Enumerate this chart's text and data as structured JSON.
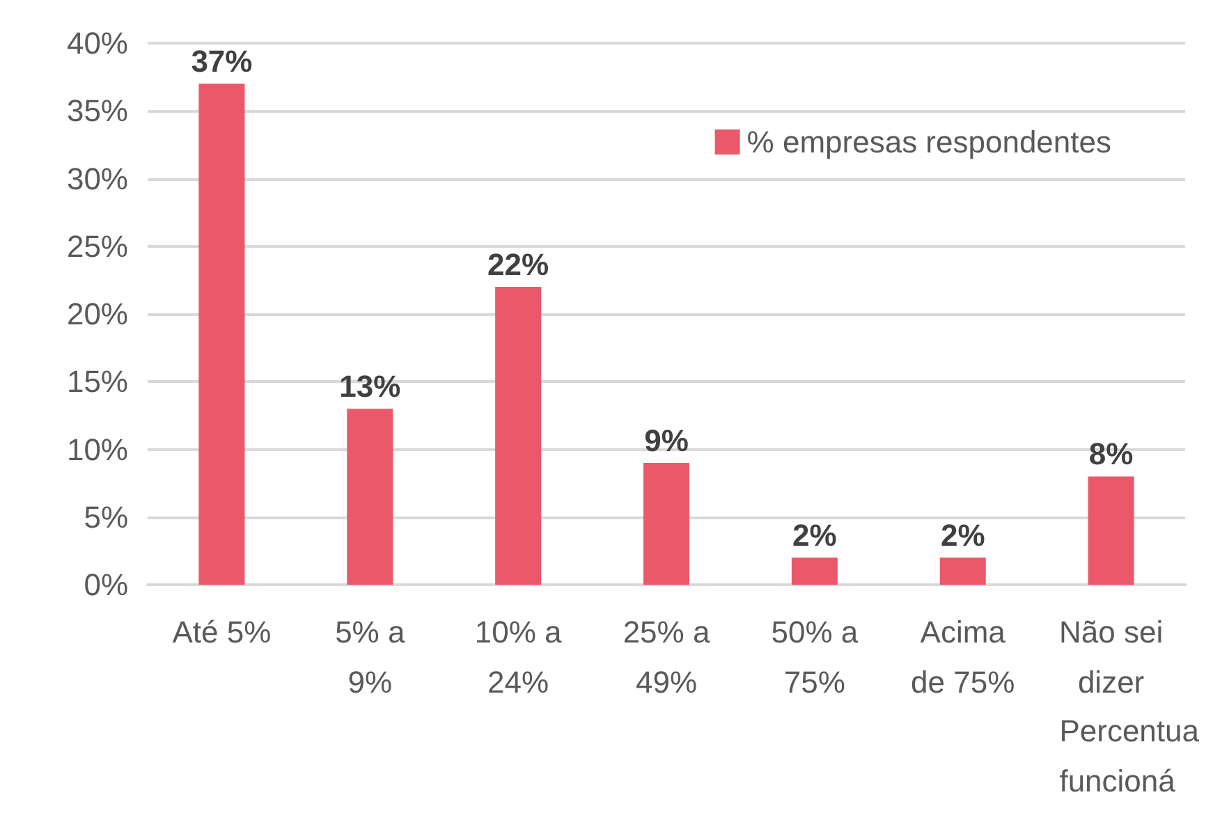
{
  "chart_data": {
    "type": "bar",
    "xlabel": "Percentua\nfuncioná",
    "categories": [
      "Até 5%",
      "5% a\n9%",
      "10% a\n24%",
      "25% a\n49%",
      "50% a\n75%",
      "Acima\nde 75%",
      "Não sei\ndizer"
    ],
    "series": [
      {
        "name": "% empresas respondentes",
        "color": "#eb5869",
        "values": [
          37,
          13,
          22,
          9,
          2,
          2,
          8
        ],
        "value_labels": [
          "37%",
          "13%",
          "22%",
          "9%",
          "2%",
          "2%",
          "8%"
        ]
      }
    ],
    "ylim": [
      0,
      40
    ],
    "yticks": [
      {
        "value": 0,
        "label": "0%"
      },
      {
        "value": 5,
        "label": "5%"
      },
      {
        "value": 10,
        "label": "10%"
      },
      {
        "value": 15,
        "label": "15%"
      },
      {
        "value": 20,
        "label": "20%"
      },
      {
        "value": 25,
        "label": "25%"
      },
      {
        "value": 30,
        "label": "30%"
      },
      {
        "value": 35,
        "label": "35%"
      },
      {
        "value": 40,
        "label": "40%"
      }
    ],
    "grid": "y",
    "legend": "top right"
  }
}
